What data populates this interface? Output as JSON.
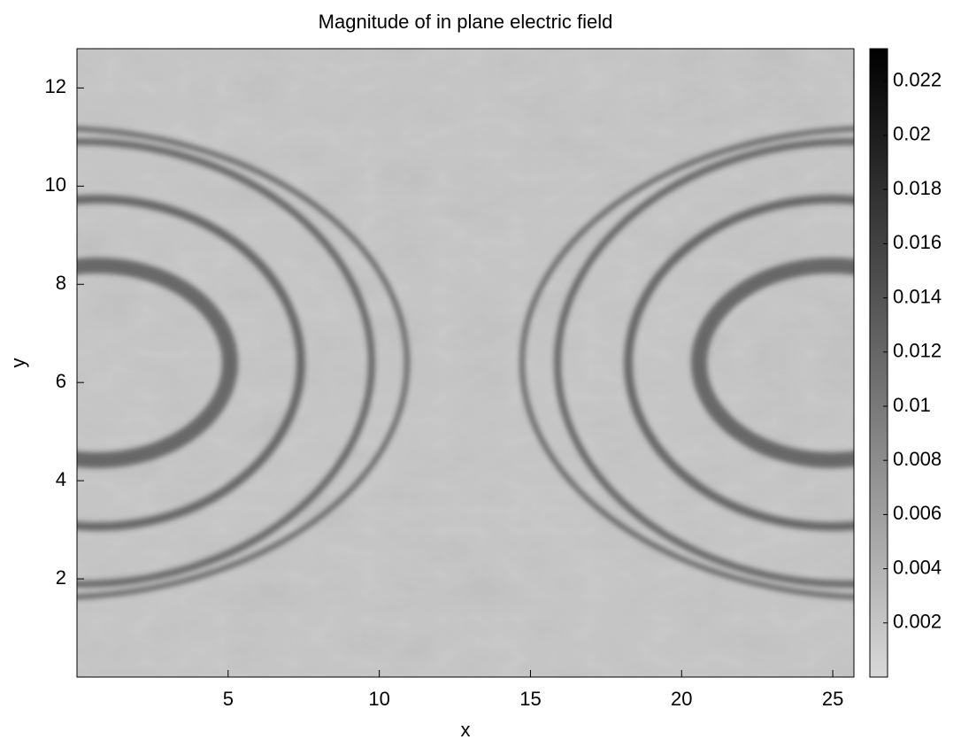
{
  "chart_data": {
    "type": "heatmap",
    "title": "Magnitude of in plane electric field",
    "xlabel": "x",
    "ylabel": "y",
    "xlim": [
      0,
      25.7
    ],
    "ylim": [
      0,
      12.8
    ],
    "xticks": [
      5,
      10,
      15,
      20,
      25
    ],
    "yticks": [
      2,
      4,
      6,
      8,
      10,
      12
    ],
    "colormap": "gray_r",
    "clim": [
      0,
      0.0232
    ],
    "cticks": [
      0.002,
      0.004,
      0.006,
      0.008,
      0.01,
      0.012,
      0.014,
      0.016,
      0.018,
      0.02,
      0.022
    ]
  }
}
